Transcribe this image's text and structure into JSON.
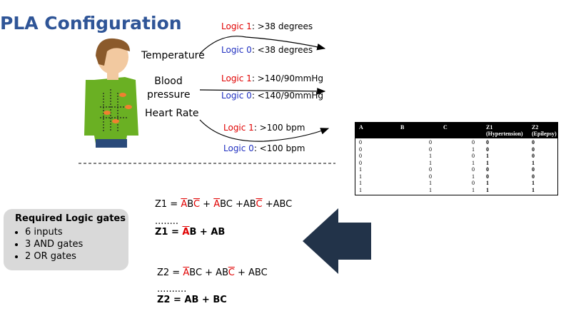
{
  "title": "PLA Configuration",
  "inputs": [
    {
      "label": "Temperature",
      "logic1": "Logic 1",
      "logic1_value": ": >38 degrees",
      "logic0": "Logic 0",
      "logic0_value": ": <38 degrees"
    },
    {
      "label": "Blood pressure",
      "logic1": "Logic 1",
      "logic1_value": ": >140/90mmHg",
      "logic0": "Logic 0",
      "logic0_value": ": <140/90mmHg"
    },
    {
      "label": "Heart Rate",
      "logic1": "Logic 1",
      "logic1_value": ": >100 bpm",
      "logic0": "Logic 0",
      "logic0_value": ": <100 bpm"
    }
  ],
  "table": {
    "headers": [
      [
        "A"
      ],
      [
        "B"
      ],
      [
        "C"
      ],
      [
        "Z1",
        "(Hypertension)"
      ],
      [
        "Z2",
        "(Epilepsy)"
      ]
    ],
    "rows": [
      [
        0,
        0,
        0,
        0,
        0
      ],
      [
        0,
        0,
        1,
        0,
        0
      ],
      [
        0,
        1,
        0,
        1,
        0
      ],
      [
        0,
        1,
        1,
        1,
        1
      ],
      [
        1,
        0,
        0,
        0,
        0
      ],
      [
        1,
        0,
        1,
        0,
        0
      ],
      [
        1,
        1,
        0,
        1,
        1
      ],
      [
        1,
        1,
        1,
        1,
        1
      ]
    ]
  },
  "equations": [
    {
      "bold": false,
      "parts": [
        {
          "text": "Z1   = "
        },
        {
          "text": "A",
          "color": "#e00000"
        },
        {
          "text": "B"
        },
        {
          "text": "C",
          "color": "#e00000"
        },
        {
          "text": " + "
        },
        {
          "text": "A",
          "color": "#e00000"
        },
        {
          "text": "BC +AB"
        },
        {
          "text": "C",
          "color": "#e00000"
        },
        {
          "text": " +ABC"
        }
      ]
    },
    {
      "bold": false,
      "parts": [
        {
          "text": "........"
        }
      ]
    },
    {
      "bold": true,
      "parts": [
        {
          "text": "Z1   =  "
        },
        {
          "text": "A",
          "color": "#e00000"
        },
        {
          "text": "B  + AB"
        }
      ]
    },
    {
      "bold": false,
      "parts": [
        {
          "text": "Z2 = "
        },
        {
          "text": "A",
          "color": "#e00000"
        },
        {
          "text": "BC + AB"
        },
        {
          "text": "C",
          "color": "#e00000"
        },
        {
          "text": " + ABC"
        }
      ]
    },
    {
      "bold": false,
      "parts": [
        {
          "text": ".........."
        }
      ]
    },
    {
      "bold": true,
      "parts": [
        {
          "text": "Z2 =  AB + BC"
        }
      ]
    }
  ],
  "gates": {
    "title": "Required Logic gates",
    "items": [
      "6 inputs",
      "3 AND gates",
      "2 OR gates"
    ]
  }
}
